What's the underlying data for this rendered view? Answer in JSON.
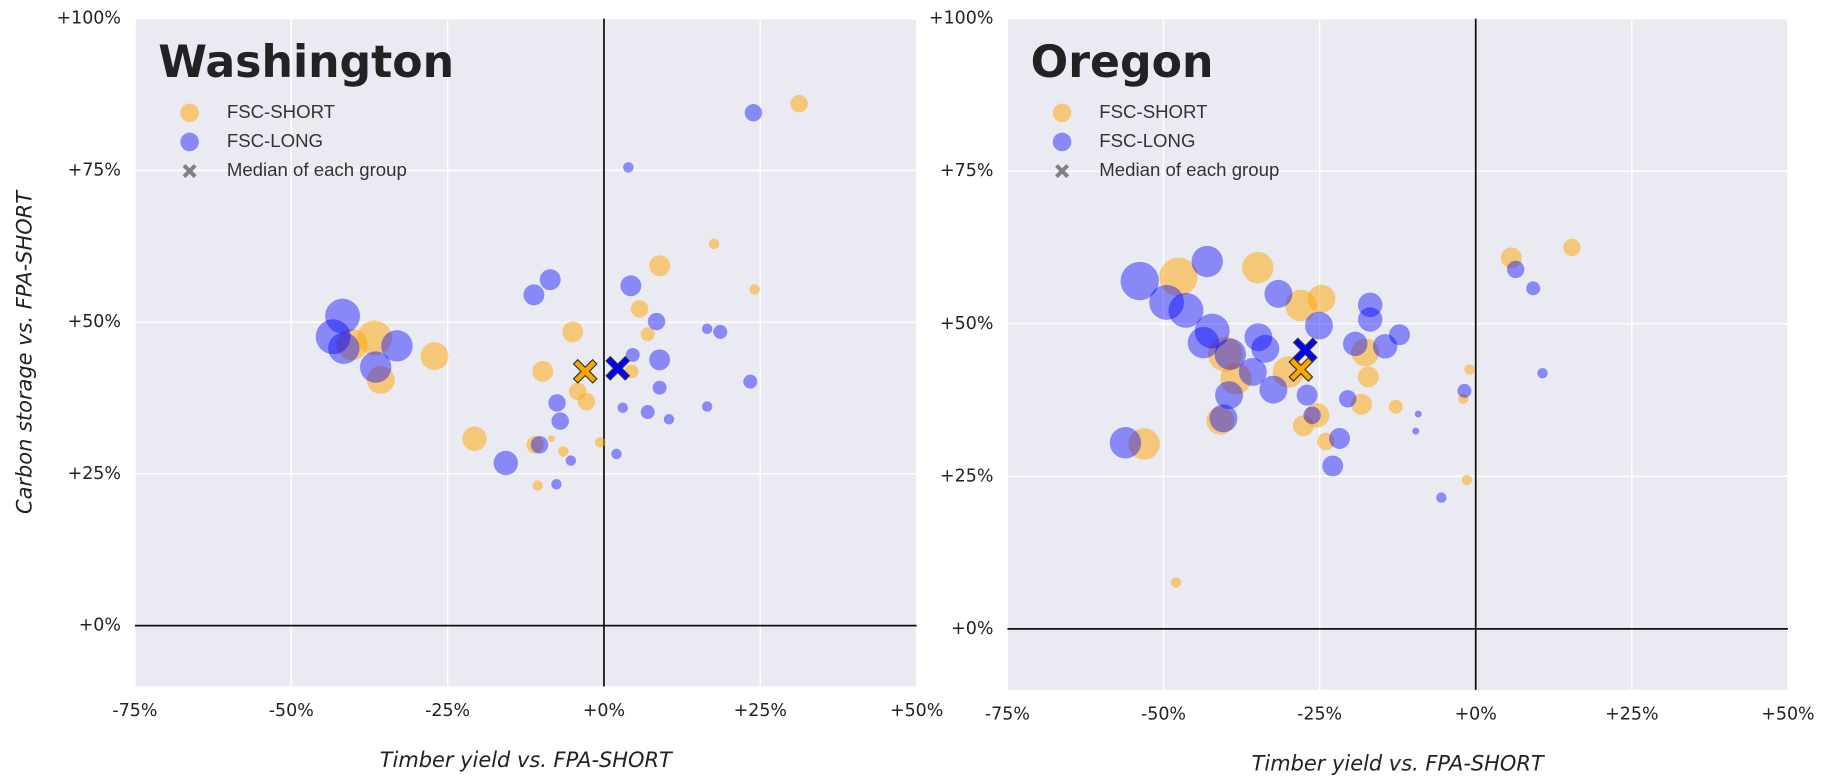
{
  "chart_data": [
    {
      "type": "scatter",
      "title": "Washington",
      "xlabel": "Timber yield vs. FPA-SHORT",
      "ylabel": "Carbon storage vs. FPA-SHORT",
      "xlim": [
        -75,
        50
      ],
      "ylim": [
        -10,
        100
      ],
      "xticks": [
        {
          "value": -75,
          "label": "-75%"
        },
        {
          "value": -50,
          "label": "-50%"
        },
        {
          "value": -25,
          "label": "-25%"
        },
        {
          "value": 0,
          "label": "+0%"
        },
        {
          "value": 25,
          "label": "+25%"
        },
        {
          "value": 50,
          "label": "+50%"
        }
      ],
      "yticks": [
        {
          "value": 0,
          "label": "+0%"
        },
        {
          "value": 25,
          "label": "+25%"
        },
        {
          "value": 50,
          "label": "+50%"
        },
        {
          "value": 75,
          "label": "+75%"
        },
        {
          "value": 100,
          "label": "+100%"
        }
      ],
      "grid": true,
      "zero_lines": true,
      "legend": "upper left",
      "series": [
        {
          "name": "FSC-SHORT",
          "color": "#ffa500",
          "x": [
            31.2,
            17.6,
            8.9,
            24.1,
            5.7,
            7,
            -5,
            -36.7,
            -40.3,
            -35.7,
            -27.1,
            -9.8,
            -4.2,
            -2.8,
            4.4,
            -20.7,
            -11,
            -0.6,
            -6.5,
            -10.6,
            -8.4
          ],
          "values": [
            86,
            62.9,
            59.3,
            55.4,
            52.2,
            48,
            48.4,
            47.4,
            46.3,
            40.5,
            44.4,
            41.9,
            38.6,
            36.9,
            41.9,
            30.8,
            29.8,
            30.2,
            28.7,
            23.1,
            30.8
          ],
          "sizes": [
            5,
            3,
            6,
            3,
            5,
            4,
            6,
            10,
            9,
            8,
            8,
            6,
            5,
            5,
            4,
            7,
            5,
            3,
            3,
            3,
            2
          ]
        },
        {
          "name": "FSC-LONG",
          "color": "#0000ff",
          "x": [
            23.9,
            3.9,
            -41.8,
            -43.3,
            -41.6,
            -33.1,
            -36.5,
            -11.2,
            -8.6,
            4.3,
            8.4,
            8.9,
            4.6,
            8.9,
            7,
            10.4,
            3,
            -7.5,
            -7,
            -10.3,
            -15.7,
            -5.3,
            2,
            -7.6,
            16.5,
            23.4,
            16.5,
            18.6
          ],
          "values": [
            84.5,
            75.5,
            51,
            47.6,
            45.7,
            46.1,
            42.6,
            54.5,
            57,
            56,
            50.1,
            43.8,
            44.6,
            39.2,
            35.2,
            34,
            35.9,
            36.7,
            33.7,
            29.8,
            26.8,
            27.2,
            28.3,
            23.3,
            36.1,
            40.2,
            48.9,
            48.4
          ],
          "sizes": [
            5,
            3,
            10,
            10,
            9,
            9,
            9,
            6,
            6,
            6,
            5,
            6,
            4,
            4,
            4,
            3,
            3,
            5,
            5,
            5,
            7,
            3,
            3,
            3,
            3,
            4,
            3,
            4
          ]
        },
        {
          "name": "Median of each group",
          "color": "#808080",
          "marker": "X",
          "colors": [
            "#ffa500",
            "#0000ff"
          ],
          "x": [
            -3,
            2.2
          ],
          "values": [
            41.9,
            42.4
          ]
        }
      ]
    },
    {
      "type": "scatter",
      "title": "Oregon",
      "xlabel": "Timber yield vs. FPA-SHORT",
      "xlim": [
        -75,
        50
      ],
      "ylim": [
        -10,
        100
      ],
      "xticks": [
        {
          "value": -75,
          "label": "-75%"
        },
        {
          "value": -50,
          "label": "-50%"
        },
        {
          "value": -25,
          "label": "-25%"
        },
        {
          "value": 0,
          "label": "+0%"
        },
        {
          "value": 25,
          "label": "+25%"
        },
        {
          "value": 50,
          "label": "+50%"
        }
      ],
      "yticks": [
        {
          "value": 0,
          "label": "+0%"
        },
        {
          "value": 25,
          "label": "+25%"
        },
        {
          "value": 50,
          "label": "+50%"
        },
        {
          "value": 75,
          "label": "+75%"
        },
        {
          "value": 100,
          "label": "+100%"
        }
      ],
      "grid": true,
      "zero_lines": true,
      "legend": "upper left",
      "series": [
        {
          "name": "FSC-SHORT",
          "color": "#ffa500",
          "x": [
            15.4,
            5.7,
            -34.9,
            -47.6,
            -28,
            -24.7,
            -40.1,
            -38.4,
            -30,
            -17.7,
            -17.2,
            -18.3,
            -25.4,
            -24,
            -27.6,
            -40.9,
            -53.1,
            -12.8,
            -2,
            -1,
            -1.4,
            -48
          ],
          "values": [
            62.5,
            60.8,
            59.2,
            57.7,
            53,
            54.1,
            45,
            41,
            42.1,
            45.3,
            41.3,
            36.8,
            35,
            30.7,
            33.3,
            34.1,
            30.3,
            36.4,
            37.7,
            42.5,
            24.4,
            7.6
          ],
          "sizes": [
            5,
            6,
            9,
            11,
            9,
            8,
            10,
            9,
            9,
            8,
            6,
            6,
            7,
            5,
            6,
            8,
            9,
            4,
            3,
            3,
            3,
            3
          ]
        },
        {
          "name": "FSC-LONG",
          "color": "#0000ff",
          "x": [
            -53.8,
            -43,
            -49.5,
            -46.4,
            -42.2,
            -43.6,
            -39.3,
            -34.8,
            -33.7,
            -31.6,
            -25.1,
            -16.9,
            -16.9,
            -12.2,
            -14.5,
            -19.3,
            -39.5,
            -40.4,
            -32.4,
            -35.7,
            -27,
            -26.2,
            -20.5,
            -21.8,
            -22.9,
            -56.1,
            6.4,
            9.2,
            10.7,
            -1.8,
            -9.2,
            -9.6,
            -5.5
          ],
          "values": [
            57,
            60.2,
            53.5,
            52.2,
            48.8,
            46.9,
            45,
            47.8,
            45.9,
            54.9,
            49.7,
            53.1,
            50.7,
            48.2,
            46.3,
            46.7,
            38.3,
            34.5,
            39.2,
            42.1,
            38.3,
            35,
            37.7,
            31.2,
            26.7,
            30.5,
            58.9,
            55.8,
            41.9,
            39,
            35.2,
            32.4,
            21.5
          ],
          "sizes": [
            11,
            9,
            10,
            10,
            10,
            9,
            9,
            8,
            8,
            8,
            8,
            7,
            7,
            6,
            7,
            7,
            8,
            8,
            8,
            8,
            6,
            5,
            5,
            6,
            6,
            9,
            5,
            4,
            3,
            4,
            2,
            2,
            3
          ]
        },
        {
          "name": "Median of each group",
          "color": "#808080",
          "marker": "X",
          "colors": [
            "#ffa500",
            "#0000ff"
          ],
          "x": [
            -28,
            -27.3
          ],
          "values": [
            42.5,
            45.7
          ]
        }
      ]
    }
  ]
}
